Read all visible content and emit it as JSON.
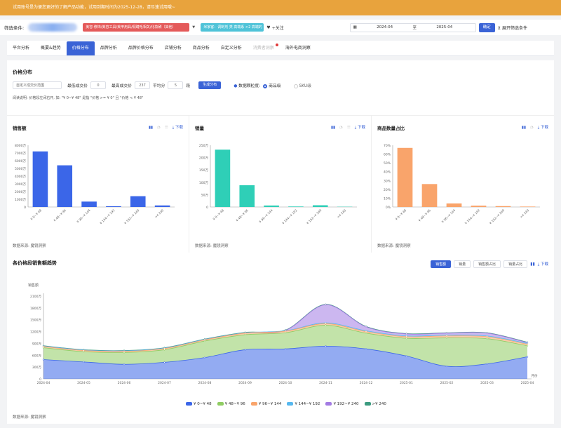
{
  "banner": {
    "text": "试用账号是为便您更好的了解产品功能，试用到期时间为2025-12-28，请尽速试用哦~"
  },
  "filter": {
    "label": "筛选条件:",
    "tag1": "美容·修饰/美容工具/美甲用具/假睫毛相关/化妆刷（其他）",
    "tag2": "米家客：调制剂 类 高端系 >2 高端的",
    "follow": "+关注",
    "date_from": "2024-04",
    "date_sep": "至",
    "date_to": "2025-04",
    "confirm": "确定",
    "expand": "展开筛选条件"
  },
  "tabs": [
    {
      "label": "平台分析",
      "state": ""
    },
    {
      "label": "概要&趋势",
      "state": ""
    },
    {
      "label": "价格分布",
      "state": "active"
    },
    {
      "label": "品牌分析",
      "state": ""
    },
    {
      "label": "品牌价格分布",
      "state": ""
    },
    {
      "label": "店铺分析",
      "state": ""
    },
    {
      "label": "商品分析",
      "state": ""
    },
    {
      "label": "自定义分析",
      "state": ""
    },
    {
      "label": "消费者洞察",
      "state": "disabled"
    },
    {
      "label": "海外电商洞察",
      "state": ""
    }
  ],
  "price": {
    "title": "价格分布",
    "range_select": "自定义成交价范围",
    "min_label": "最低成交价",
    "min_val": "0",
    "max_label": "最高成交价",
    "max_val": "237",
    "avg_label": "平均分",
    "avg_val": "5",
    "seg": "段",
    "gen_btn": "生成分布",
    "granularity": "数据颗粒度:",
    "opt_item": "商品级",
    "opt_sku": "SKU级",
    "help": "阅读说明: 价格段左闭右开, 如: \"¥ 0~¥ 48\" 是指 \"价格 >= ¥ 0\" 且 \"价格 < ¥ 48\""
  },
  "cards": [
    {
      "title": "销售额",
      "download": "下载",
      "source": "数据来源: 魔镜洞察"
    },
    {
      "title": "销量",
      "download": "下载",
      "source": "数据来源: 魔镜洞察"
    },
    {
      "title": "商品数量占比",
      "download": "下载",
      "source": "数据来源: 魔镜洞察"
    }
  ],
  "trend": {
    "title": "各价格段销售额趋势",
    "btns": [
      "销售额",
      "销量",
      "销售额占比",
      "销量占比"
    ],
    "download": "下载",
    "source": "数据来源: 魔镜洞察"
  },
  "chart_data": [
    {
      "type": "bar",
      "title": "销售额",
      "categories": [
        "¥ 0~¥ 48",
        "¥ 48~¥ 96",
        "¥ 96~¥ 144",
        "¥ 144~¥ 192",
        "¥ 192~¥ 240",
        ">¥ 240"
      ],
      "values": [
        7200,
        5400,
        700,
        100,
        1400,
        200
      ],
      "ylim": [
        0,
        8000
      ],
      "yticks": [
        "0",
        "1000万",
        "2000万",
        "3000万",
        "4000万",
        "5000万",
        "6000万",
        "7000万",
        "8000万"
      ],
      "color": "#3b66e8"
    },
    {
      "type": "bar",
      "title": "销量",
      "categories": [
        "¥ 0~¥ 48",
        "¥ 48~¥ 96",
        "¥ 96~¥ 144",
        "¥ 144~¥ 192",
        "¥ 192~¥ 240",
        ">¥ 240"
      ],
      "values": [
        232,
        88,
        6,
        2,
        7,
        1
      ],
      "ylim": [
        0,
        250
      ],
      "yticks": [
        "0",
        "50万",
        "100万",
        "150万",
        "200万",
        "250万"
      ],
      "color": "#2fcfb7"
    },
    {
      "type": "bar",
      "title": "商品数量占比",
      "categories": [
        "¥ 0~¥ 48",
        "¥ 48~¥ 96",
        "¥ 96~¥ 144",
        "¥ 144~¥ 192",
        "¥ 192~¥ 240",
        ">¥ 240"
      ],
      "values": [
        67,
        26,
        4,
        1.5,
        1,
        0.5
      ],
      "ylim": [
        0,
        70
      ],
      "yticks": [
        "0%",
        "10%",
        "20%",
        "30%",
        "40%",
        "50%",
        "60%",
        "70%"
      ],
      "color": "#f9a46b"
    },
    {
      "type": "area",
      "title": "各价格段销售额趋势",
      "ylabel": "销售额",
      "xlabel": "月份",
      "x": [
        "2024-04",
        "2024-05",
        "2024-06",
        "2024-07",
        "2024-08",
        "2024-09",
        "2024-10",
        "2024-11",
        "2024-12",
        "2025-01",
        "2025-02",
        "2025-03",
        "2025-04"
      ],
      "ylim": [
        0,
        2100
      ],
      "yticks": [
        "0",
        "300万",
        "600万",
        "900万",
        "1200万",
        "1500万",
        "1800万",
        "2100万"
      ],
      "series": [
        {
          "name": "¥ 0~¥ 48",
          "color": "#3b66e8",
          "values": [
            490,
            430,
            370,
            420,
            540,
            740,
            760,
            830,
            760,
            580,
            320,
            380,
            560
          ]
        },
        {
          "name": "¥ 48~¥ 96",
          "color": "#8fcc62",
          "values": [
            300,
            260,
            300,
            320,
            420,
            380,
            410,
            530,
            400,
            450,
            720,
            640,
            280
          ]
        },
        {
          "name": "¥ 96~¥ 144",
          "color": "#f9a46b",
          "values": [
            30,
            30,
            30,
            30,
            30,
            40,
            40,
            40,
            40,
            40,
            50,
            50,
            40
          ]
        },
        {
          "name": "¥ 144~¥ 192",
          "color": "#56b8ef",
          "values": [
            10,
            10,
            10,
            10,
            10,
            10,
            10,
            20,
            20,
            20,
            20,
            20,
            20
          ]
        },
        {
          "name": "¥ 192~¥ 240",
          "color": "#a37be3",
          "values": [
            0,
            0,
            0,
            0,
            0,
            0,
            10,
            460,
            100,
            50,
            50,
            70,
            20
          ]
        },
        {
          "name": ">¥ 240",
          "color": "#3c9b7f",
          "values": [
            10,
            10,
            10,
            10,
            10,
            10,
            10,
            10,
            10,
            10,
            10,
            10,
            10
          ]
        }
      ]
    }
  ]
}
